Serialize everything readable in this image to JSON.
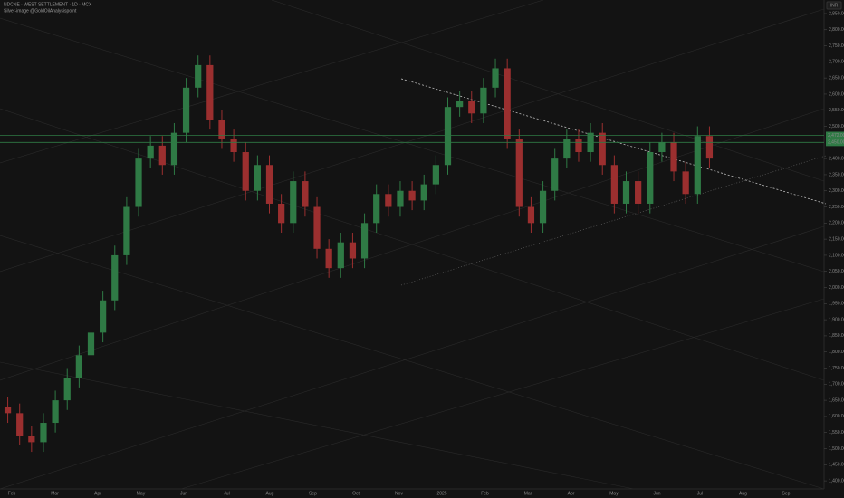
{
  "chart_data": {
    "type": "candlestick",
    "title": "NDCNE · WEST SETTLEMENT · 1D · MCX",
    "subtitle": "Silver-image @GoldOilAnalysispoint",
    "up_color": "#2f7a45",
    "down_color": "#9b2f2f",
    "open": [
      1630,
      1610,
      1540,
      1520,
      1580,
      1650,
      1720,
      1790,
      1860,
      1960,
      2100,
      2250,
      2400,
      2440,
      2380,
      2480,
      2620,
      2690,
      2520,
      2460,
      2420,
      2300,
      2380,
      2260,
      2200,
      2330,
      2250,
      2120,
      2060,
      2140,
      2090,
      2200,
      2290,
      2250,
      2300,
      2270,
      2320,
      2380,
      2560,
      2580,
      2540,
      2620,
      2680,
      2460,
      2250,
      2200,
      2300,
      2400,
      2460,
      2420,
      2480,
      2380,
      2260,
      2330,
      2260,
      2420,
      2450,
      2360,
      2290,
      2470
    ],
    "high": [
      1660,
      1640,
      1570,
      1610,
      1680,
      1750,
      1820,
      1890,
      1990,
      2130,
      2280,
      2430,
      2470,
      2470,
      2510,
      2650,
      2720,
      2720,
      2550,
      2490,
      2450,
      2410,
      2410,
      2290,
      2360,
      2360,
      2280,
      2150,
      2170,
      2170,
      2230,
      2320,
      2320,
      2330,
      2330,
      2350,
      2410,
      2590,
      2610,
      2610,
      2650,
      2710,
      2710,
      2490,
      2280,
      2330,
      2430,
      2490,
      2490,
      2510,
      2510,
      2410,
      2360,
      2360,
      2450,
      2480,
      2480,
      2390,
      2500,
      2500
    ],
    "low": [
      1580,
      1510,
      1490,
      1490,
      1550,
      1620,
      1690,
      1760,
      1830,
      1930,
      2070,
      2220,
      2370,
      2350,
      2350,
      2450,
      2590,
      2490,
      2430,
      2390,
      2270,
      2270,
      2230,
      2170,
      2170,
      2220,
      2090,
      2030,
      2030,
      2060,
      2060,
      2170,
      2220,
      2220,
      2240,
      2240,
      2290,
      2350,
      2530,
      2510,
      2510,
      2590,
      2430,
      2220,
      2170,
      2170,
      2270,
      2370,
      2390,
      2390,
      2350,
      2230,
      2230,
      2230,
      2230,
      2390,
      2330,
      2260,
      2260,
      2370
    ],
    "close": [
      1610,
      1540,
      1520,
      1580,
      1650,
      1720,
      1790,
      1860,
      1960,
      2100,
      2250,
      2400,
      2440,
      2380,
      2480,
      2620,
      2690,
      2520,
      2460,
      2420,
      2300,
      2380,
      2260,
      2200,
      2330,
      2250,
      2120,
      2060,
      2140,
      2090,
      2200,
      2290,
      2250,
      2300,
      2270,
      2320,
      2380,
      2560,
      2580,
      2540,
      2620,
      2680,
      2460,
      2250,
      2200,
      2300,
      2400,
      2460,
      2420,
      2480,
      2380,
      2260,
      2330,
      2260,
      2420,
      2450,
      2360,
      2290,
      2470,
      2400
    ],
    "categories": [
      "Feb",
      "Mar",
      "Apr",
      "May",
      "Jun",
      "Jul",
      "Aug",
      "Sep",
      "Oct",
      "Nov",
      "2025",
      "Feb",
      "Mar",
      "Apr",
      "May",
      "Jun",
      "Jul",
      "Aug",
      "Sep"
    ],
    "ylim": [
      1375,
      2892
    ],
    "yticks": [
      {
        "value": 1400,
        "label": "1,400.00"
      },
      {
        "value": 1450,
        "label": "1,450.00"
      },
      {
        "value": 1500,
        "label": "1,500.00"
      },
      {
        "value": 1550,
        "label": "1,550.00"
      },
      {
        "value": 1600,
        "label": "1,600.00"
      },
      {
        "value": 1650,
        "label": "1,650.00"
      },
      {
        "value": 1700,
        "label": "1,700.00"
      },
      {
        "value": 1750,
        "label": "1,750.00"
      },
      {
        "value": 1800,
        "label": "1,800.00"
      },
      {
        "value": 1850,
        "label": "1,850.00"
      },
      {
        "value": 1900,
        "label": "1,900.00"
      },
      {
        "value": 1950,
        "label": "1,950.00"
      },
      {
        "value": 2000,
        "label": "2,000.00"
      },
      {
        "value": 2050,
        "label": "2,050.00"
      },
      {
        "value": 2100,
        "label": "2,100.00"
      },
      {
        "value": 2150,
        "label": "2,150.00"
      },
      {
        "value": 2200,
        "label": "2,200.00"
      },
      {
        "value": 2250,
        "label": "2,250.00"
      },
      {
        "value": 2300,
        "label": "2,300.00"
      },
      {
        "value": 2350,
        "label": "2,350.00"
      },
      {
        "value": 2400,
        "label": "2,400.00"
      },
      {
        "value": 2500,
        "label": "2,500.00"
      },
      {
        "value": 2550,
        "label": "2,550.00"
      },
      {
        "value": 2600,
        "label": "2,600.00"
      },
      {
        "value": 2650,
        "label": "2,650.00"
      },
      {
        "value": 2700,
        "label": "2,700.00"
      },
      {
        "value": 2750,
        "label": "2,750.00"
      },
      {
        "value": 2800,
        "label": "2,800.00"
      },
      {
        "value": 2850,
        "label": "2,850.00"
      }
    ],
    "price_lines": [
      {
        "value": 2472,
        "label": "2,472.00",
        "color": "#2f7a45"
      },
      {
        "value": 2450,
        "label": "2,450.00",
        "color": "#2f7a45"
      }
    ],
    "currency": "INR"
  }
}
